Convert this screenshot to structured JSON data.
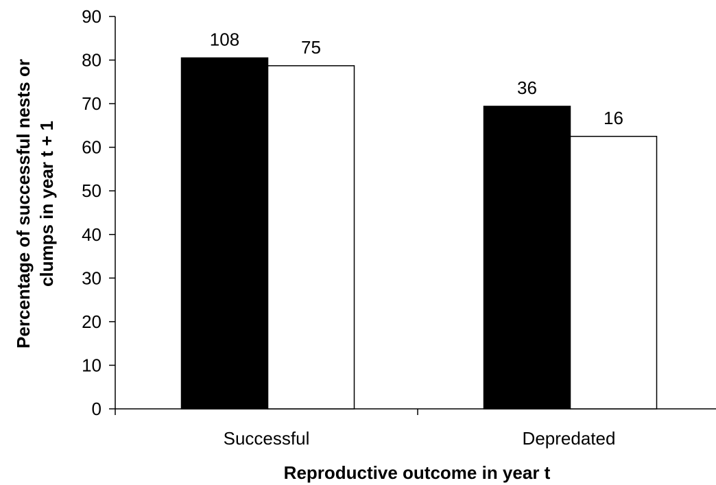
{
  "chart_data": {
    "type": "bar",
    "categories": [
      "Successful",
      "Depredated"
    ],
    "series": [
      {
        "values": [
          80.5,
          69.4
        ],
        "color": "#000000",
        "data_labels": [
          "108",
          "36"
        ]
      },
      {
        "values": [
          78.7,
          62.5
        ],
        "color": "#ffffff",
        "data_labels": [
          "75",
          "16"
        ]
      }
    ],
    "xlabel": "Reproductive outcome in year t",
    "ylabel_lines": [
      "Percentage of successful nests or",
      "clumps in year t + 1"
    ],
    "ylim": [
      0,
      90
    ],
    "yticks": [
      0,
      10,
      20,
      30,
      40,
      50,
      60,
      70,
      80,
      90
    ],
    "grid": false,
    "legend": "none"
  }
}
